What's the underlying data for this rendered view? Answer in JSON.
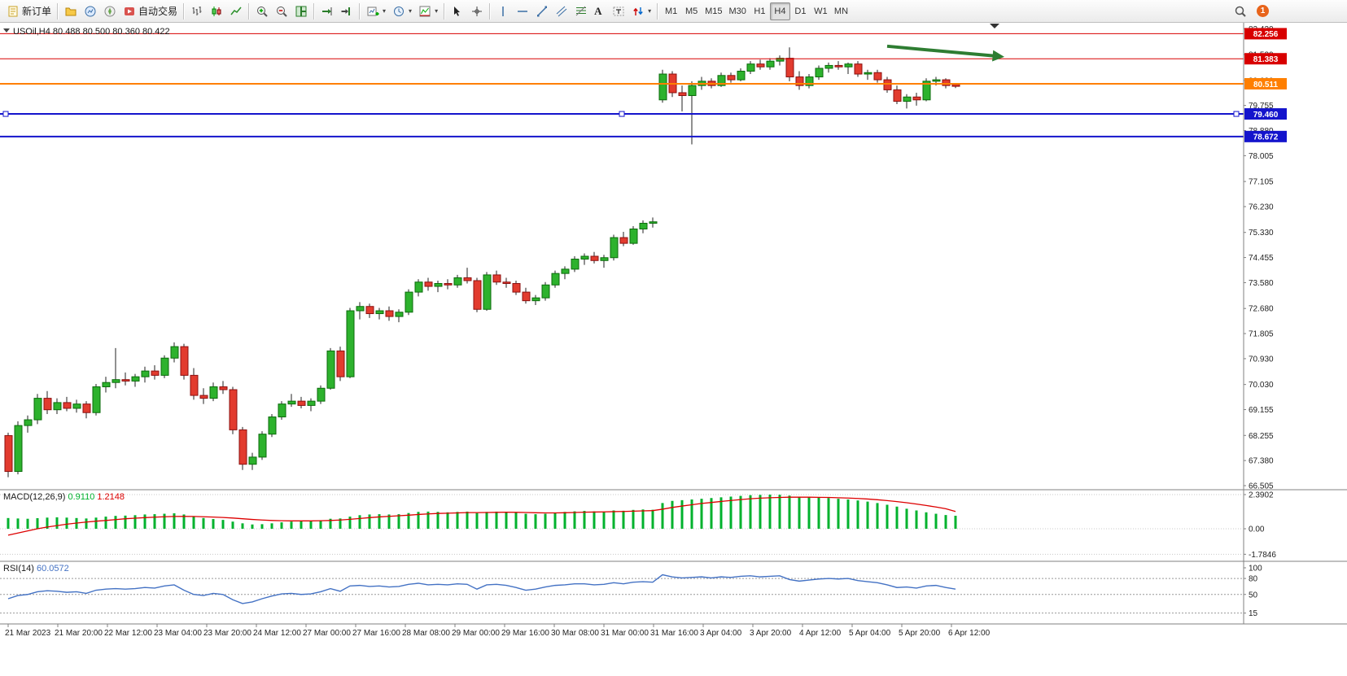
{
  "toolbar": {
    "groups": [
      [
        {
          "name": "new-order-button",
          "icon": "new-order-icon",
          "label": "新订单"
        }
      ],
      [
        {
          "name": "profiles-button",
          "icon": "profiles-icon"
        },
        {
          "name": "market-watch-button",
          "icon": "market-watch-icon"
        },
        {
          "name": "navigator-button",
          "icon": "navigator-icon"
        },
        {
          "name": "autotrading-button",
          "icon": "autotrading-icon",
          "label": "自动交易"
        }
      ],
      [
        {
          "name": "bar-chart-button",
          "icon": "bar-chart-icon"
        },
        {
          "name": "candlestick-chart-button",
          "icon": "candlestick-icon"
        },
        {
          "name": "line-chart-button",
          "icon": "line-chart-icon"
        }
      ],
      [
        {
          "name": "zoom-in-button",
          "icon": "zoom-in-icon"
        },
        {
          "name": "zoom-out-button",
          "icon": "zoom-out-icon"
        },
        {
          "name": "tile-windows-button",
          "icon": "tile-windows-icon"
        }
      ],
      [
        {
          "name": "auto-scroll-button",
          "icon": "auto-scroll-icon"
        },
        {
          "name": "chart-shift-button",
          "icon": "chart-shift-icon"
        }
      ],
      [
        {
          "name": "new-chart-button",
          "icon": "new-chart-icon",
          "dropdown": true
        },
        {
          "name": "periods-button",
          "icon": "periods-icon",
          "dropdown": true
        },
        {
          "name": "indicators-button",
          "icon": "indicators-icon",
          "dropdown": true
        }
      ],
      [
        {
          "name": "cursor-button",
          "icon": "cursor-icon"
        },
        {
          "name": "crosshair-button",
          "icon": "crosshair-icon"
        }
      ],
      [
        {
          "name": "vertical-line-button",
          "icon": "vertical-line-icon"
        },
        {
          "name": "horizontal-line-button",
          "icon": "horizontal-line-icon"
        },
        {
          "name": "trendline-button",
          "icon": "trendline-icon"
        },
        {
          "name": "channel-button",
          "icon": "channel-icon"
        },
        {
          "name": "fibonacci-button",
          "icon": "fibonacci-icon"
        },
        {
          "name": "text-button",
          "label": "A",
          "serif": true
        },
        {
          "name": "text-label-button",
          "icon": "text-label-icon"
        },
        {
          "name": "arrows-button",
          "icon": "arrows-icon",
          "dropdown": true
        }
      ]
    ],
    "timeframes": [
      "M1",
      "M5",
      "M15",
      "M30",
      "H1",
      "H4",
      "D1",
      "W1",
      "MN"
    ],
    "active_timeframe": "H4",
    "right_items": [
      {
        "name": "search-button",
        "icon": "search-icon"
      },
      {
        "name": "notification-badge",
        "badge": "1"
      }
    ]
  },
  "chart_data": {
    "type": "bar",
    "style": "candlestick",
    "symbol": "USOil",
    "timeframe": "H4",
    "title": "USOil,H4  80.488 80.500 80.360 80.422",
    "ohlc_display": {
      "open": "80.488",
      "high": "80.500",
      "low": "80.360",
      "close": "80.422"
    },
    "y_axis_labels": [
      82.43,
      81.53,
      80.63,
      79.755,
      78.88,
      78.005,
      77.105,
      76.23,
      75.33,
      74.455,
      73.58,
      72.68,
      71.805,
      70.93,
      70.03,
      69.155,
      68.255,
      67.38,
      66.505
    ],
    "x_labels": [
      "21 Mar 2023",
      "21 Mar 20:00",
      "22 Mar 12:00",
      "23 Mar 04:00",
      "23 Mar 20:00",
      "24 Mar 12:00",
      "27 Mar 00:00",
      "27 Mar 16:00",
      "28 Mar 08:00",
      "29 Mar 00:00",
      "29 Mar 16:00",
      "30 Mar 08:00",
      "31 Mar 00:00",
      "31 Mar 16:00",
      "3 Apr 04:00",
      "3 Apr 20:00",
      "4 Apr 12:00",
      "5 Apr 04:00",
      "5 Apr 20:00",
      "6 Apr 12:00"
    ],
    "candles": [
      [
        68.25,
        68.35,
        66.8,
        67.0
      ],
      [
        67.0,
        68.75,
        66.9,
        68.6
      ],
      [
        68.6,
        68.95,
        68.35,
        68.8
      ],
      [
        68.8,
        69.7,
        68.65,
        69.55
      ],
      [
        69.55,
        69.8,
        69.0,
        69.15
      ],
      [
        69.15,
        69.55,
        69.0,
        69.4
      ],
      [
        69.4,
        69.6,
        69.1,
        69.2
      ],
      [
        69.2,
        69.5,
        69.05,
        69.35
      ],
      [
        69.35,
        69.45,
        68.85,
        69.05
      ],
      [
        69.05,
        70.05,
        68.95,
        69.95
      ],
      [
        69.95,
        70.3,
        69.75,
        70.1
      ],
      [
        70.1,
        71.3,
        69.9,
        70.2
      ],
      [
        70.2,
        70.45,
        70.0,
        70.15
      ],
      [
        70.15,
        70.4,
        69.95,
        70.3
      ],
      [
        70.3,
        70.65,
        70.1,
        70.5
      ],
      [
        70.5,
        70.7,
        70.2,
        70.35
      ],
      [
        70.35,
        71.05,
        70.25,
        70.95
      ],
      [
        70.95,
        71.5,
        70.8,
        71.35
      ],
      [
        71.35,
        71.45,
        70.2,
        70.35
      ],
      [
        70.35,
        70.6,
        69.5,
        69.65
      ],
      [
        69.65,
        69.9,
        69.35,
        69.55
      ],
      [
        69.55,
        70.1,
        69.45,
        69.95
      ],
      [
        69.95,
        70.15,
        69.7,
        69.85
      ],
      [
        69.85,
        69.95,
        68.3,
        68.45
      ],
      [
        68.45,
        68.55,
        67.05,
        67.25
      ],
      [
        67.25,
        67.65,
        67.05,
        67.5
      ],
      [
        67.5,
        68.4,
        67.4,
        68.3
      ],
      [
        68.3,
        69.0,
        68.2,
        68.9
      ],
      [
        68.9,
        69.45,
        68.8,
        69.35
      ],
      [
        69.35,
        69.7,
        69.25,
        69.45
      ],
      [
        69.45,
        69.6,
        69.2,
        69.3
      ],
      [
        69.3,
        69.55,
        69.1,
        69.45
      ],
      [
        69.45,
        70.0,
        69.35,
        69.9
      ],
      [
        69.9,
        71.3,
        69.85,
        71.2
      ],
      [
        71.2,
        71.35,
        70.15,
        70.3
      ],
      [
        70.3,
        72.7,
        70.25,
        72.6
      ],
      [
        72.6,
        72.9,
        72.3,
        72.75
      ],
      [
        72.75,
        72.85,
        72.35,
        72.5
      ],
      [
        72.5,
        72.7,
        72.3,
        72.6
      ],
      [
        72.6,
        72.75,
        72.25,
        72.4
      ],
      [
        72.4,
        72.65,
        72.2,
        72.55
      ],
      [
        72.55,
        73.35,
        72.45,
        73.25
      ],
      [
        73.25,
        73.7,
        73.1,
        73.6
      ],
      [
        73.6,
        73.75,
        73.3,
        73.45
      ],
      [
        73.45,
        73.65,
        73.25,
        73.55
      ],
      [
        73.55,
        73.7,
        73.35,
        73.5
      ],
      [
        73.5,
        73.85,
        73.4,
        73.75
      ],
      [
        73.75,
        74.1,
        73.55,
        73.65
      ],
      [
        73.65,
        73.75,
        72.55,
        72.65
      ],
      [
        72.65,
        73.95,
        72.6,
        73.85
      ],
      [
        73.85,
        74.0,
        73.5,
        73.6
      ],
      [
        73.6,
        73.75,
        73.4,
        73.55
      ],
      [
        73.55,
        73.65,
        73.15,
        73.25
      ],
      [
        73.25,
        73.4,
        72.85,
        72.95
      ],
      [
        72.95,
        73.15,
        72.8,
        73.05
      ],
      [
        73.05,
        73.6,
        72.95,
        73.5
      ],
      [
        73.5,
        74.0,
        73.4,
        73.9
      ],
      [
        73.9,
        74.15,
        73.7,
        74.05
      ],
      [
        74.05,
        74.5,
        73.95,
        74.4
      ],
      [
        74.4,
        74.6,
        74.2,
        74.5
      ],
      [
        74.5,
        74.65,
        74.25,
        74.35
      ],
      [
        74.35,
        74.55,
        74.1,
        74.45
      ],
      [
        74.45,
        75.25,
        74.35,
        75.15
      ],
      [
        75.15,
        75.35,
        74.85,
        74.95
      ],
      [
        74.95,
        75.55,
        74.9,
        75.45
      ],
      [
        75.45,
        75.75,
        75.3,
        75.65
      ],
      [
        75.65,
        75.85,
        75.5,
        75.7
      ],
      [
        79.95,
        81.0,
        79.85,
        80.85
      ],
      [
        80.85,
        80.95,
        80.05,
        80.2
      ],
      [
        80.2,
        80.45,
        79.55,
        80.1
      ],
      [
        80.1,
        80.6,
        78.4,
        80.45
      ],
      [
        80.45,
        80.75,
        80.3,
        80.6
      ],
      [
        80.6,
        80.7,
        80.35,
        80.45
      ],
      [
        80.45,
        80.9,
        80.4,
        80.8
      ],
      [
        80.8,
        80.9,
        80.55,
        80.65
      ],
      [
        80.65,
        81.05,
        80.6,
        80.95
      ],
      [
        80.95,
        81.3,
        80.85,
        81.2
      ],
      [
        81.2,
        81.35,
        81.0,
        81.1
      ],
      [
        81.1,
        81.4,
        81.0,
        81.3
      ],
      [
        81.3,
        81.5,
        81.15,
        81.4
      ],
      [
        81.4,
        81.78,
        80.6,
        80.75
      ],
      [
        80.75,
        80.95,
        80.3,
        80.45
      ],
      [
        80.45,
        80.85,
        80.35,
        80.75
      ],
      [
        80.75,
        81.15,
        80.65,
        81.05
      ],
      [
        81.05,
        81.25,
        80.9,
        81.15
      ],
      [
        81.15,
        81.3,
        81.0,
        81.1
      ],
      [
        81.1,
        81.25,
        80.85,
        81.2
      ],
      [
        81.2,
        81.3,
        80.75,
        80.85
      ],
      [
        80.85,
        81.0,
        80.65,
        80.9
      ],
      [
        80.9,
        81.0,
        80.55,
        80.65
      ],
      [
        80.65,
        80.75,
        80.2,
        80.3
      ],
      [
        80.3,
        80.45,
        79.8,
        79.9
      ],
      [
        79.9,
        80.15,
        79.65,
        80.05
      ],
      [
        80.05,
        80.2,
        79.75,
        79.95
      ],
      [
        79.95,
        80.7,
        79.9,
        80.6
      ],
      [
        80.6,
        80.75,
        80.45,
        80.65
      ],
      [
        80.65,
        80.7,
        80.35,
        80.45
      ],
      [
        80.488,
        80.5,
        80.36,
        80.422
      ]
    ],
    "hlines": [
      {
        "price": 82.256,
        "color": "#d80000",
        "label": "82.256",
        "width": 1
      },
      {
        "price": 81.383,
        "color": "#d80000",
        "label": "81.383",
        "width": 1
      },
      {
        "price": 80.511,
        "color": "#ff7f00",
        "label": "80.511",
        "width": 2
      },
      {
        "price": 79.46,
        "color": "#1414cc",
        "label": "79.460",
        "width": 2,
        "handles": true
      },
      {
        "price": 78.672,
        "color": "#1414cc",
        "label": "78.672",
        "width": 2
      }
    ],
    "annotations": [
      {
        "type": "arrow",
        "color": "#2e7d32",
        "from": {
          "bar": 90,
          "price": 81.82
        },
        "to": {
          "bar": 102,
          "price": 81.45
        }
      }
    ],
    "indicators": {
      "macd": {
        "label": "MACD(12,26,9)",
        "values_display": [
          "0.9110",
          "1.2148"
        ],
        "scale_labels": [
          "2.3902",
          "0.00",
          "-1.7846"
        ],
        "scale_values": [
          2.3902,
          0,
          -1.7846
        ],
        "histogram_color": "#00b22d",
        "signal_color": "#dd0000",
        "histogram": [
          0.75,
          0.72,
          0.7,
          0.74,
          0.78,
          0.8,
          0.78,
          0.75,
          0.72,
          0.78,
          0.85,
          0.9,
          0.92,
          0.95,
          1.0,
          1.02,
          1.05,
          1.08,
          1.0,
          0.88,
          0.75,
          0.68,
          0.62,
          0.5,
          0.38,
          0.3,
          0.32,
          0.38,
          0.45,
          0.5,
          0.52,
          0.55,
          0.6,
          0.7,
          0.72,
          0.85,
          0.95,
          1.0,
          1.02,
          1.0,
          1.02,
          1.1,
          1.18,
          1.2,
          1.18,
          1.15,
          1.18,
          1.2,
          1.1,
          1.18,
          1.2,
          1.18,
          1.12,
          1.05,
          1.02,
          1.05,
          1.12,
          1.18,
          1.22,
          1.25,
          1.22,
          1.2,
          1.28,
          1.26,
          1.32,
          1.35,
          1.33,
          1.8,
          1.95,
          2.0,
          2.05,
          2.1,
          2.15,
          2.2,
          2.25,
          2.3,
          2.35,
          2.37,
          2.39,
          2.38,
          2.32,
          2.25,
          2.2,
          2.18,
          2.15,
          2.1,
          2.05,
          1.98,
          1.9,
          1.8,
          1.68,
          1.55,
          1.4,
          1.28,
          1.15,
          1.05,
          0.96,
          0.91
        ],
        "signal": [
          -0.45,
          -0.3,
          -0.15,
          0.0,
          0.12,
          0.22,
          0.32,
          0.4,
          0.47,
          0.53,
          0.58,
          0.64,
          0.7,
          0.74,
          0.78,
          0.81,
          0.84,
          0.86,
          0.87,
          0.86,
          0.84,
          0.82,
          0.79,
          0.75,
          0.7,
          0.65,
          0.61,
          0.58,
          0.56,
          0.55,
          0.55,
          0.55,
          0.56,
          0.58,
          0.61,
          0.66,
          0.72,
          0.78,
          0.83,
          0.87,
          0.91,
          0.95,
          1.0,
          1.04,
          1.07,
          1.09,
          1.11,
          1.13,
          1.13,
          1.14,
          1.15,
          1.16,
          1.15,
          1.14,
          1.12,
          1.11,
          1.11,
          1.12,
          1.14,
          1.16,
          1.17,
          1.18,
          1.2,
          1.21,
          1.23,
          1.25,
          1.27,
          1.37,
          1.49,
          1.59,
          1.68,
          1.77,
          1.84,
          1.91,
          1.98,
          2.04,
          2.1,
          2.14,
          2.17,
          2.19,
          2.21,
          2.21,
          2.21,
          2.2,
          2.19,
          2.17,
          2.15,
          2.12,
          2.08,
          2.03,
          1.97,
          1.9,
          1.82,
          1.73,
          1.63,
          1.52,
          1.4,
          1.21
        ]
      },
      "rsi": {
        "label": "RSI(14)",
        "value_display": "60.0572",
        "scale_labels": [
          "100",
          "80",
          "50",
          "15"
        ],
        "scale_values": [
          100,
          80,
          50,
          15
        ],
        "levels": [
          80,
          50,
          15
        ],
        "line_color": "#4472c4",
        "values": [
          42,
          48,
          50,
          55,
          57,
          56,
          54,
          55,
          52,
          58,
          60,
          61,
          60,
          61,
          63,
          62,
          66,
          68,
          58,
          50,
          48,
          52,
          50,
          40,
          33,
          36,
          42,
          47,
          51,
          52,
          50,
          51,
          55,
          61,
          56,
          66,
          67,
          65,
          66,
          64,
          65,
          69,
          71,
          68,
          69,
          68,
          70,
          69,
          60,
          68,
          69,
          67,
          63,
          58,
          60,
          64,
          67,
          68,
          70,
          70,
          68,
          69,
          72,
          70,
          73,
          74,
          73,
          87,
          83,
          81,
          82,
          83,
          81,
          83,
          82,
          84,
          85,
          83,
          84,
          85,
          78,
          75,
          77,
          79,
          80,
          79,
          80,
          76,
          74,
          72,
          68,
          63,
          64,
          62,
          66,
          67,
          63,
          60.06
        ]
      }
    },
    "colors": {
      "up": "#2db22d",
      "up_border": "#0b6b0b",
      "down": "#e23b2e",
      "down_border": "#8c1010",
      "wick": "#222222",
      "background": "#ffffff",
      "separator": "#808080"
    }
  }
}
